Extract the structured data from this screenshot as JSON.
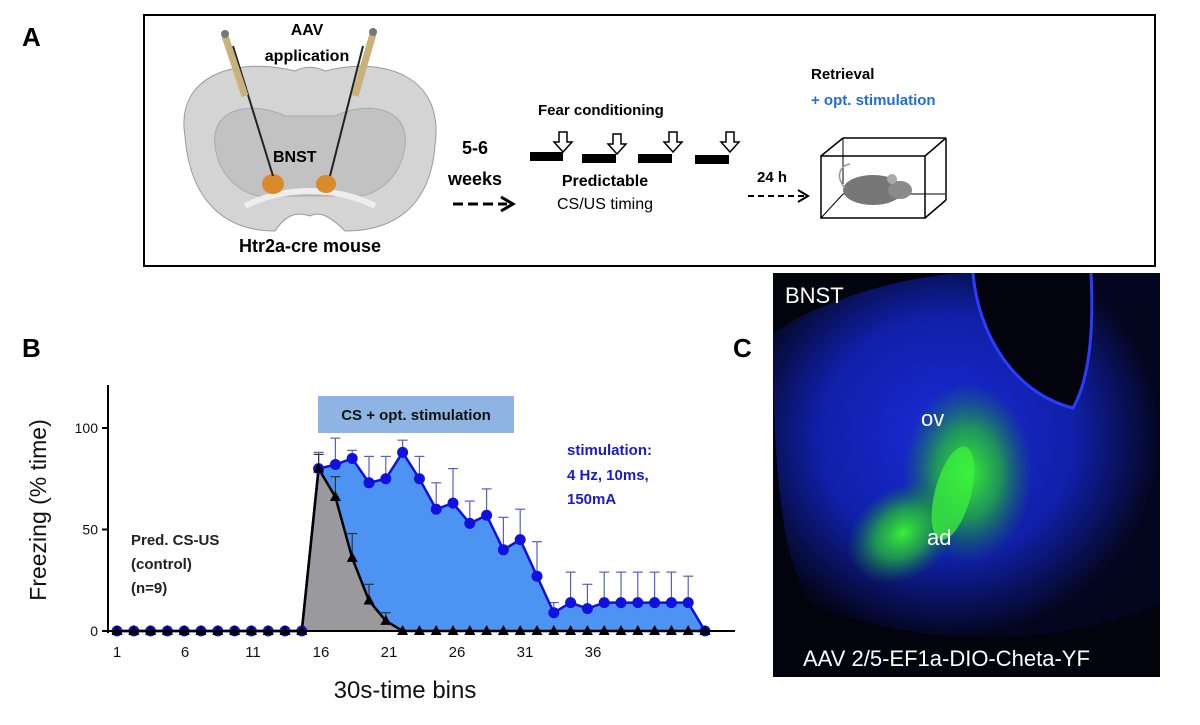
{
  "panels": {
    "a": "A",
    "b": "B",
    "c": "C"
  },
  "panel_a": {
    "aav_line1": "AAV",
    "aav_line2": "application",
    "region": "BNST",
    "mouse_label": "Htr2a-cre mouse",
    "delay_line1": "5-6",
    "delay_line2": "weeks",
    "conditioning_title": "Fear conditioning",
    "predictable": "Predictable",
    "timing": "CS/US timing",
    "interval": "24 h",
    "retrieval": "Retrieval",
    "stimulation": "+ opt. stimulation",
    "stimulation_color": "#1f6fd6"
  },
  "panel_c": {
    "region": "BNST",
    "sub1": "ov",
    "sub2": "ad",
    "vector": "AAV 2/5-EF1a-DIO-Cheta-YF"
  },
  "chart_data": {
    "type": "area",
    "ylabel": "Freezing (% time)",
    "xlabel": "30s-time bins",
    "ylim": [
      0,
      120
    ],
    "yticks": [
      0,
      50,
      100
    ],
    "xticks": [
      1,
      6,
      11,
      16,
      21,
      26,
      31,
      36
    ],
    "grid": false,
    "stim_box_label": "CS + opt. stimulation",
    "stim_box_color": "#8db4e2",
    "control_label": [
      "Pred. CS-US",
      "(control)",
      "(n=9)"
    ],
    "stim_params": [
      "stimulation:",
      "4 Hz, 10ms,",
      "150mA"
    ],
    "stim_params_color": "#1a1acc",
    "x": [
      1,
      2,
      3,
      4,
      5,
      6,
      7,
      8,
      9,
      10,
      11,
      12,
      13,
      14,
      15,
      16,
      17,
      18,
      19,
      20,
      21,
      22,
      23,
      24,
      25,
      26,
      27,
      28,
      29,
      30,
      31,
      32,
      33,
      34,
      35,
      36
    ],
    "series": [
      {
        "marker": "circle",
        "color": "#1010e0",
        "fill": "#4d94f2",
        "values": [
          0,
          0,
          0,
          0,
          0,
          0,
          0,
          0,
          0,
          0,
          0,
          0,
          80,
          82,
          85,
          73,
          75,
          88,
          75,
          60,
          63,
          53,
          57,
          40,
          45,
          27,
          9,
          14,
          11,
          14,
          14,
          14,
          14,
          14,
          14,
          0
        ],
        "error_upper": [
          null,
          null,
          null,
          null,
          null,
          null,
          null,
          null,
          null,
          null,
          null,
          null,
          88,
          95,
          89,
          86,
          86,
          94,
          86,
          73,
          80,
          64,
          70,
          56,
          60,
          44,
          14,
          29,
          23,
          29,
          29,
          29,
          29,
          29,
          27,
          null
        ]
      },
      {
        "marker": "triangle",
        "color": "#000000",
        "fill": "#9a9a9e",
        "values": [
          0,
          0,
          0,
          0,
          0,
          0,
          0,
          0,
          0,
          0,
          0,
          0,
          80,
          66,
          36,
          15,
          5,
          0,
          0,
          0,
          0,
          0,
          0,
          0,
          0,
          0,
          0,
          0,
          0,
          0,
          0,
          0,
          0,
          0,
          0,
          0
        ],
        "error_upper": [
          null,
          null,
          null,
          null,
          null,
          null,
          null,
          null,
          null,
          null,
          null,
          null,
          87,
          76,
          48,
          23,
          9,
          null,
          null,
          null,
          null,
          null,
          null,
          null,
          null,
          null,
          null,
          null,
          null,
          null,
          null,
          null,
          null,
          null,
          null,
          null
        ]
      }
    ]
  }
}
